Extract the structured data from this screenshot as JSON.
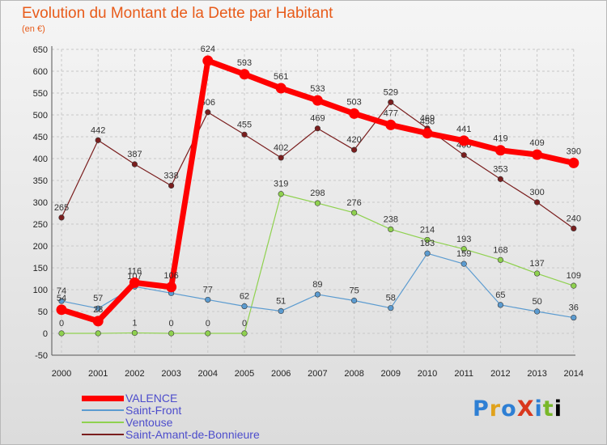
{
  "title": "Evolution du Montant de la Dette par Habitant",
  "subtitle": "(en €)",
  "brand": "ProXiti",
  "chart_data": {
    "type": "line",
    "title": "Evolution du Montant de la Dette par Habitant",
    "subtitle": "(en €)",
    "x": [
      "2000",
      "2001",
      "2002",
      "2003",
      "2004",
      "2005",
      "2006",
      "2007",
      "2008",
      "2009",
      "2010",
      "2011",
      "2012",
      "2013",
      "2014"
    ],
    "ylim": [
      -50,
      650
    ],
    "yticks": [
      -50,
      0,
      50,
      100,
      150,
      200,
      250,
      300,
      350,
      400,
      450,
      500,
      550,
      600,
      650
    ],
    "grid": true,
    "legend_position": "bottom-left",
    "series": [
      {
        "name": "Saint-Amant-de-Bonnieure",
        "color": "#7a1e1e",
        "width": 1.2,
        "values": [
          265,
          442,
          387,
          338,
          506,
          455,
          402,
          469,
          420,
          529,
          469,
          408,
          353,
          300,
          240
        ],
        "labels": [
          "265",
          "442",
          "387",
          "338",
          "506",
          "455",
          "402",
          "469",
          "420",
          "529",
          "469",
          "408",
          "353",
          "300",
          "240"
        ]
      },
      {
        "name": "Ventouse",
        "color": "#8fd14f",
        "width": 1.2,
        "values": [
          0,
          0,
          1,
          0,
          0,
          0,
          319,
          298,
          276,
          238,
          214,
          193,
          168,
          137,
          109
        ],
        "labels": [
          "0",
          "",
          "1",
          "0",
          "0",
          "0",
          "319",
          "298",
          "276",
          "238",
          "214",
          "193",
          "168",
          "137",
          "109"
        ]
      },
      {
        "name": "Saint-Front",
        "color": "#5b9bd0",
        "width": 1.2,
        "values": [
          74,
          57,
          107,
          92,
          77,
          62,
          51,
          89,
          75,
          58,
          183,
          159,
          65,
          50,
          36
        ],
        "labels": [
          "74",
          "57",
          "107",
          "",
          "77",
          "62",
          "51",
          "89",
          "75",
          "58",
          "183",
          "159",
          "65",
          "50",
          "36"
        ]
      },
      {
        "name": "VALENCE",
        "color": "#ff0000",
        "width": 7,
        "values": [
          54,
          28,
          116,
          106,
          624,
          593,
          561,
          533,
          503,
          477,
          458,
          441,
          419,
          409,
          390
        ],
        "labels": [
          "54",
          "28",
          "116",
          "106",
          "624",
          "593",
          "561",
          "533",
          "503",
          "477",
          "458",
          "441",
          "419",
          "409",
          "390"
        ]
      }
    ],
    "legend_order": [
      "VALENCE",
      "Saint-Front",
      "Ventouse",
      "Saint-Amant-de-Bonnieure"
    ]
  }
}
